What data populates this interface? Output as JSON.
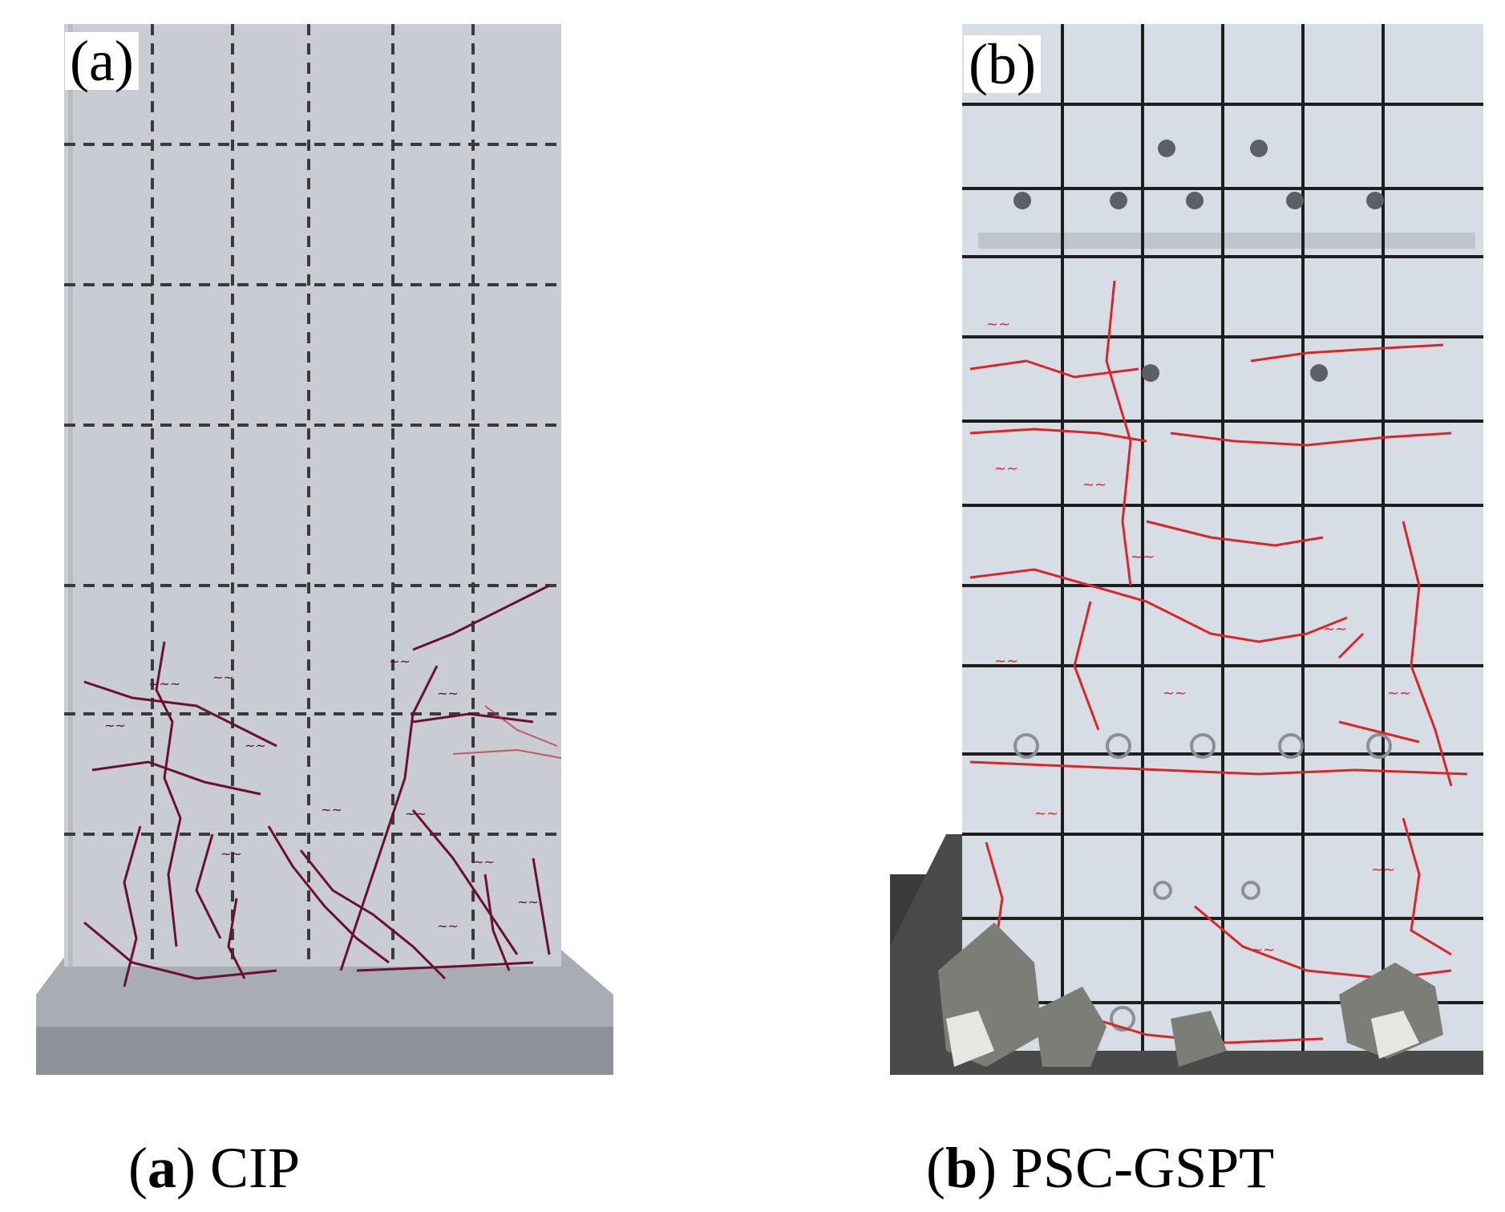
{
  "panels": [
    {
      "id": "a",
      "tag_label": "(a)",
      "caption_letter": "a",
      "caption_text": "CIP",
      "colors": {
        "concrete": "#c9ccd2",
        "grid": "#3a3a3a",
        "crack_marks": "#6b1030",
        "base": "#9aa0a6"
      }
    },
    {
      "id": "b",
      "tag_label": "(b)",
      "caption_letter": "b",
      "caption_text": "PSC-GSPT",
      "colors": {
        "concrete": "#d7dde4",
        "grid": "#1e1e1e",
        "crack_marks": "#d8262a",
        "frame": "#3b3b3b"
      }
    }
  ],
  "caption_parens": {
    "open": "(",
    "close": ")"
  }
}
